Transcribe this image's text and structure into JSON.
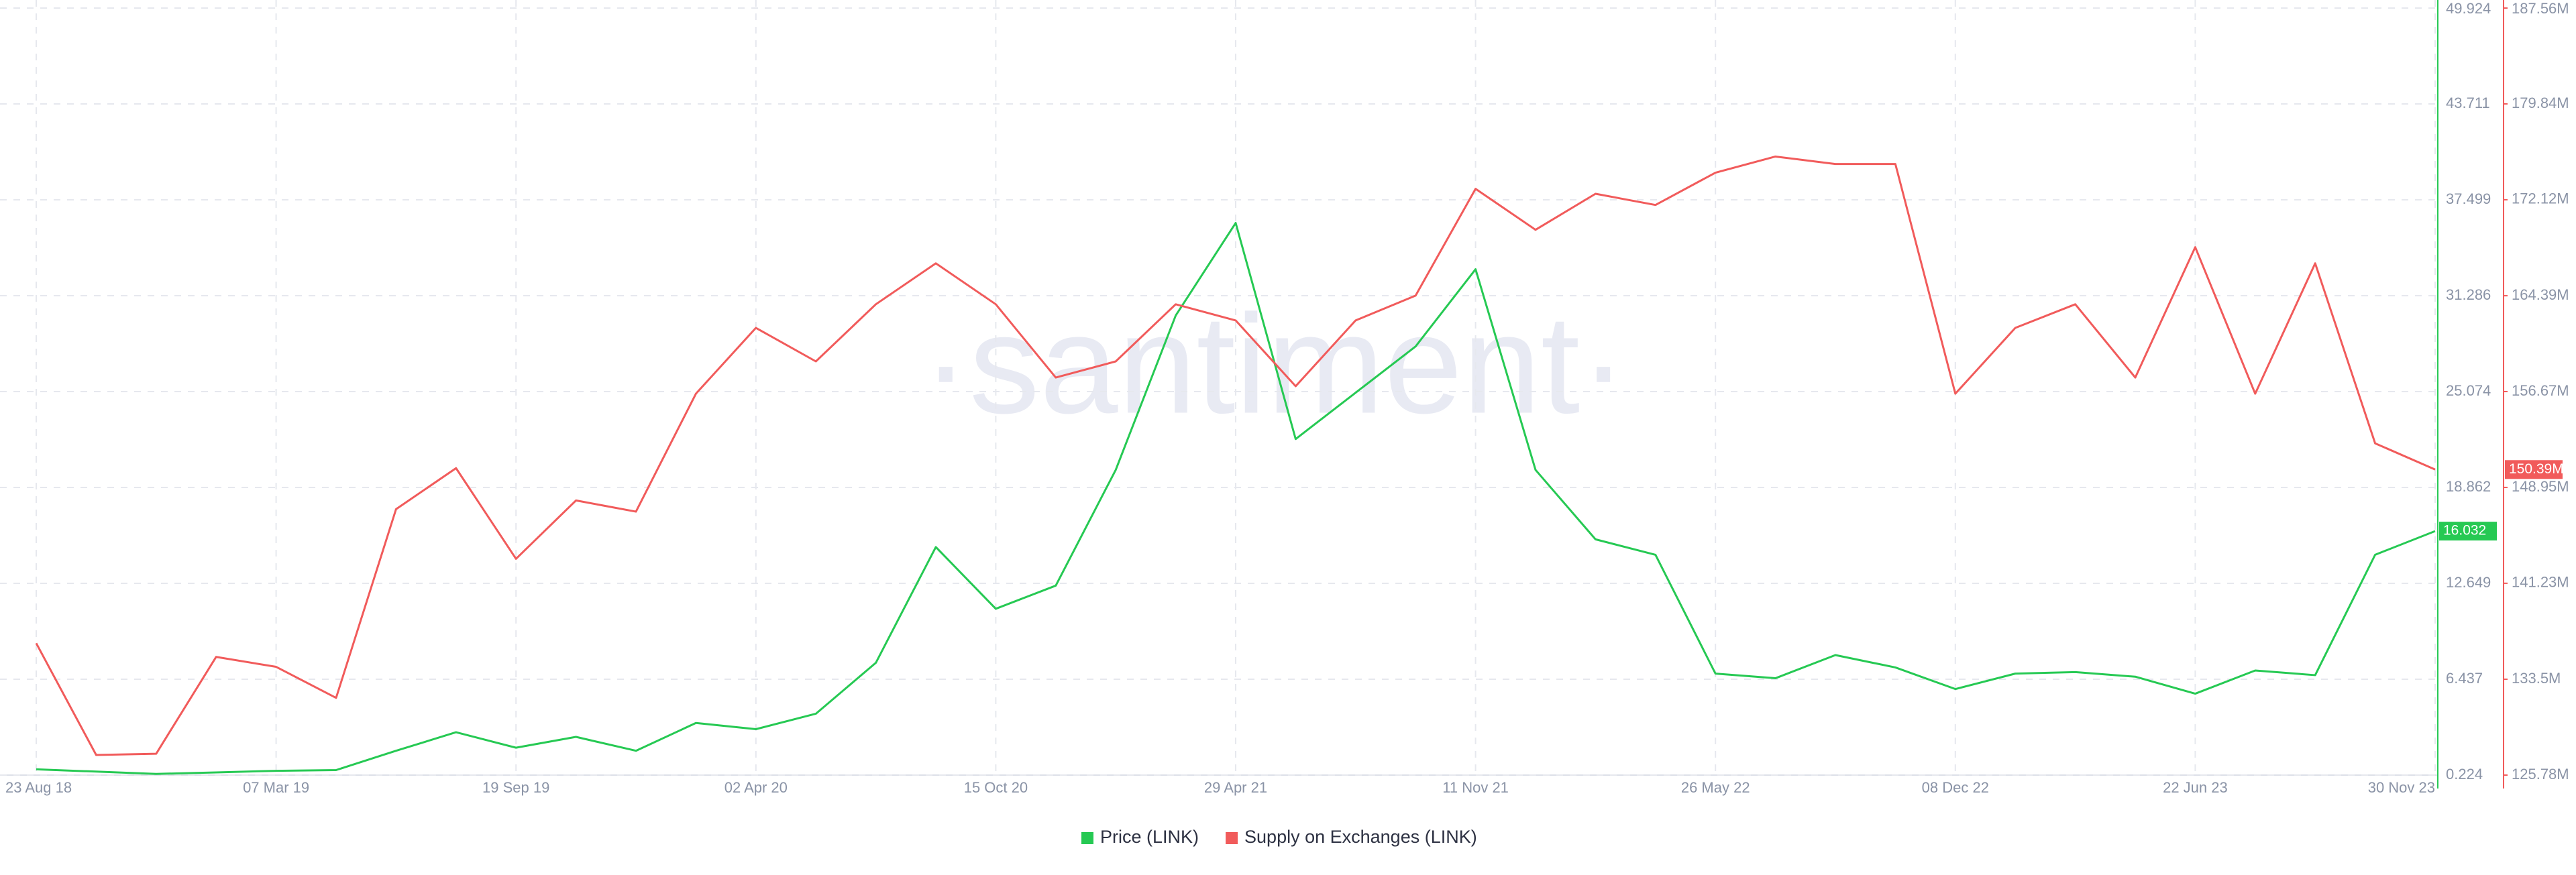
{
  "chart_data": {
    "type": "line",
    "watermark": "·santiment·",
    "categories": [
      "23 Aug 18",
      null,
      null,
      null,
      "07 Mar 19",
      null,
      null,
      null,
      "19 Sep 19",
      null,
      null,
      null,
      "02 Apr 20",
      null,
      null,
      null,
      "15 Oct 20",
      null,
      null,
      null,
      "29 Apr 21",
      null,
      null,
      null,
      "11 Nov 21",
      null,
      null,
      null,
      "26 May 22",
      null,
      null,
      null,
      "08 Dec 22",
      null,
      null,
      null,
      "22 Jun 23",
      null,
      null,
      null,
      "30 Nov 23"
    ],
    "series": [
      {
        "name": "Price (LINK)",
        "color": "#26c953",
        "axis": "y",
        "last_value_label": "16.032",
        "values": [
          0.6,
          0.45,
          0.3,
          0.4,
          0.5,
          0.55,
          1.8,
          3.0,
          2.0,
          2.7,
          1.8,
          3.6,
          3.2,
          4.2,
          7.5,
          15.0,
          11.0,
          12.5,
          20.0,
          30.0,
          36.0,
          22.0,
          25.0,
          28.0,
          33.0,
          20.0,
          15.5,
          14.5,
          6.8,
          6.5,
          8.0,
          7.2,
          5.8,
          6.8,
          6.9,
          6.6,
          5.5,
          7.0,
          6.7,
          14.5,
          16.032
        ]
      },
      {
        "name": "Supply on Exchanges (LINK)",
        "color": "#f15b5b",
        "axis": "y2",
        "last_value_label": "150.39M",
        "values": [
          136400000,
          127400000,
          127500000,
          135300000,
          134500000,
          132000000,
          147200000,
          150500000,
          143200000,
          147900000,
          147000000,
          156500000,
          161800000,
          159100000,
          163700000,
          167000000,
          163700000,
          157800000,
          159100000,
          163700000,
          162400000,
          157100000,
          162400000,
          164400000,
          173000000,
          169700000,
          172600000,
          171700000,
          174300000,
          175600000,
          175000000,
          175000000,
          156500000,
          161800000,
          163700000,
          157800000,
          168300000,
          156500000,
          167000000,
          152500000,
          150390000
        ]
      }
    ],
    "ylim": [
      0.224,
      49.924
    ],
    "yticks": [
      0.224,
      6.437,
      12.649,
      18.862,
      25.074,
      31.286,
      37.499,
      43.711,
      49.924
    ],
    "y2lim": [
      125780000,
      187560000
    ],
    "y2ticks": [
      {
        "value": 125780000,
        "label": "125.78M"
      },
      {
        "value": 133500000,
        "label": "133.5M"
      },
      {
        "value": 141230000,
        "label": "141.23M"
      },
      {
        "value": 148950000,
        "label": "148.95M"
      },
      {
        "value": 156670000,
        "label": "156.67M"
      },
      {
        "value": 164390000,
        "label": "164.39M"
      },
      {
        "value": 172120000,
        "label": "172.12M"
      },
      {
        "value": 179840000,
        "label": "179.84M"
      },
      {
        "value": 187560000,
        "label": "187.56M"
      }
    ],
    "grid": true,
    "legend": "bottom"
  }
}
